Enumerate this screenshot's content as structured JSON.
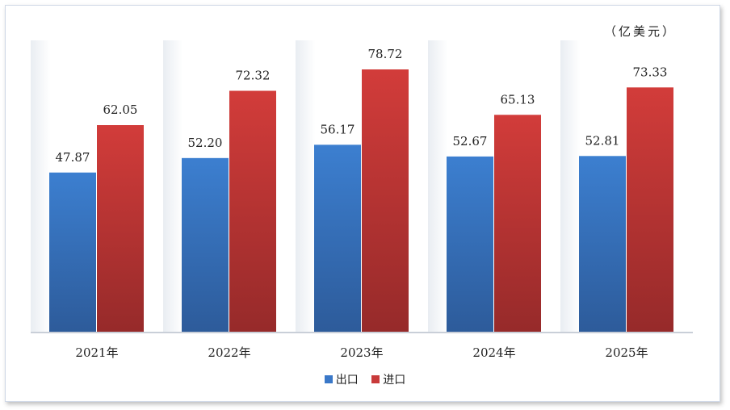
{
  "chart_data": {
    "type": "bar",
    "title": "",
    "unit": "（亿美元）",
    "categories": [
      "2021年",
      "2022年",
      "2023年",
      "2024年",
      "2025年"
    ],
    "series": [
      {
        "name": "出口",
        "color": "#3a78c8",
        "values": [
          47.87,
          52.2,
          56.17,
          52.67,
          52.81
        ]
      },
      {
        "name": "进口",
        "color": "#c83a3a",
        "values": [
          62.05,
          72.32,
          78.72,
          65.13,
          73.33
        ]
      }
    ],
    "value_labels": [
      [
        "47.87",
        "52.20",
        "56.17",
        "52.67",
        "52.81"
      ],
      [
        "62.05",
        "72.32",
        "78.72",
        "65.13",
        "73.33"
      ]
    ],
    "ylim": [
      0,
      90
    ],
    "grid": false,
    "legend": "bottom-center"
  }
}
